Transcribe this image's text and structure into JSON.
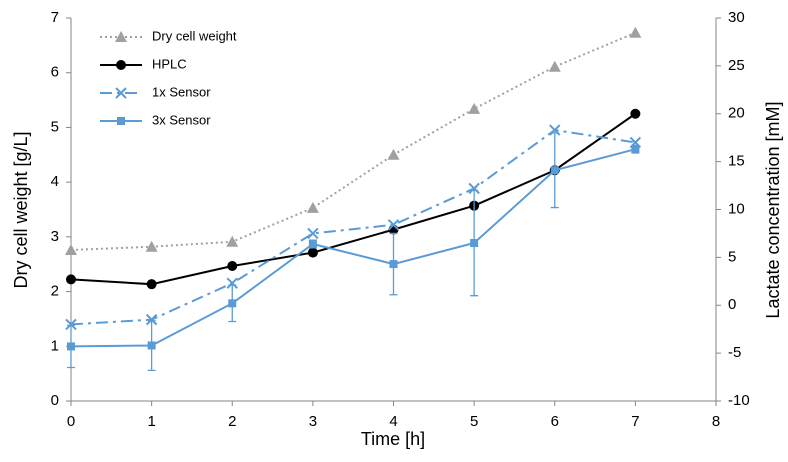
{
  "chart_data": {
    "type": "line",
    "x_label": "Time [h]",
    "y_label": "Dry cell weight [g/L]",
    "y2_label": "Lactate concentration [mM]",
    "x": [
      0,
      1,
      2,
      3,
      4,
      5,
      6,
      7
    ],
    "xlim": [
      0,
      8
    ],
    "xticks": [
      0,
      1,
      2,
      3,
      4,
      5,
      6,
      7,
      8
    ],
    "ylim": [
      0,
      7
    ],
    "yticks": [
      0,
      1,
      2,
      3,
      4,
      5,
      6,
      7
    ],
    "y2lim": [
      -10,
      30
    ],
    "y2ticks": [
      -10,
      -5,
      0,
      5,
      10,
      15,
      20,
      25,
      30
    ],
    "legend": "upper left",
    "series": [
      {
        "name": "Dry cell weight",
        "color": "#a0a0a0",
        "line_style": "dotted",
        "marker": "triangle",
        "axis": "y",
        "values": [
          2.76,
          2.82,
          2.91,
          3.53,
          4.5,
          5.34,
          6.11,
          6.73
        ]
      },
      {
        "name": "HPLC",
        "color": "#000000",
        "line_style": "solid",
        "marker": "circle",
        "axis": "y2",
        "values": [
          2.7,
          2.2,
          4.1,
          5.5,
          7.9,
          10.4,
          14.1,
          20.0
        ]
      },
      {
        "name": "1x Sensor",
        "color": "#5b9bd5",
        "line_style": "dashdot",
        "marker": "cross",
        "axis": "y2",
        "values": [
          -2.0,
          -1.5,
          2.3,
          7.5,
          8.4,
          12.2,
          18.3,
          17.0
        ]
      },
      {
        "name": "3x Sensor",
        "color": "#5b9bd5",
        "line_style": "solid",
        "marker": "square",
        "axis": "y2",
        "values": [
          -4.3,
          -4.2,
          0.2,
          6.4,
          4.3,
          6.5,
          14.1,
          16.3
        ],
        "errors": [
          2.2,
          2.6,
          1.9,
          0.4,
          3.2,
          5.5,
          3.9,
          0.4
        ]
      }
    ]
  }
}
